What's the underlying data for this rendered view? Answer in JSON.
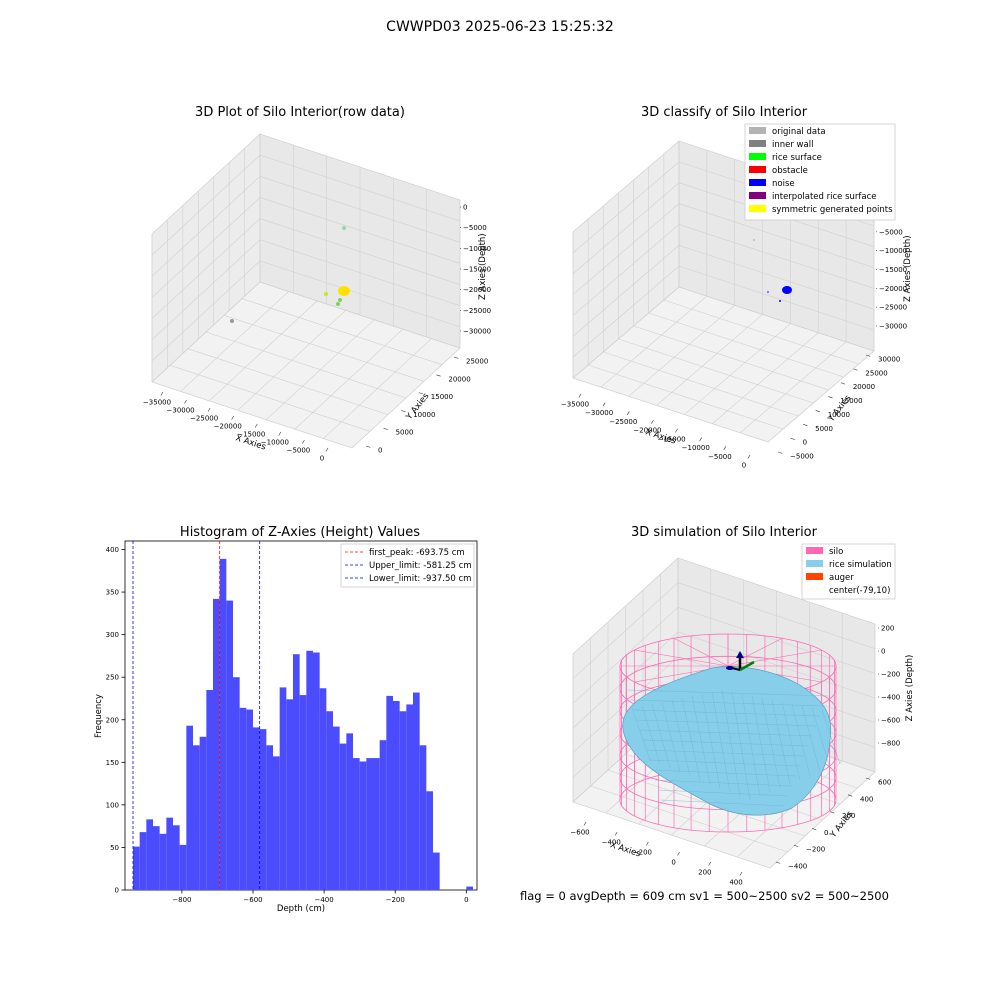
{
  "suptitle": "CWWPD03 2025-06-23 15:25:32",
  "footer": "flag = 0     avgDepth = 609 cm  sv1 = 500~2500  sv2 = 500~2500",
  "colors": {
    "original": "#b3b3b3",
    "inner_wall": "#808080",
    "rice_surface": "#00ff00",
    "obstacle": "#ff0000",
    "noise": "#0000ff",
    "interp": "#800080",
    "symmetric": "#ffff00",
    "hist_bar": "#4c4cff",
    "silo": "#ff69b4",
    "rice_sim": "#87ceeb",
    "auger": "#ff4500"
  },
  "chart_data": [
    {
      "type": "scatter",
      "title": "3D Plot of Silo Interior(row data)",
      "xlabel": "X Axies",
      "ylabel": "Y Axies",
      "zlabel": "Z Axies (Depth)",
      "x_ticks": [
        "−35000",
        "−30000",
        "−25000",
        "−20000",
        "−15000",
        "−10000",
        "−5000",
        "0"
      ],
      "y_ticks": [
        "0",
        "5000",
        "10000",
        "15000",
        "20000",
        "25000"
      ],
      "z_ticks": [
        "0",
        "−5000",
        "−10000",
        "−15000",
        "−20000",
        "−25000",
        "−30000"
      ]
    },
    {
      "type": "scatter",
      "title": "3D classify of Silo Interior",
      "xlabel": "X Axies",
      "ylabel": "Y Axies",
      "zlabel": "Z Axies (Depth)",
      "x_ticks": [
        "−35000",
        "−30000",
        "−25000",
        "−20000",
        "−15000",
        "−10000",
        "−5000",
        "0"
      ],
      "y_ticks": [
        "−5000",
        "0",
        "5000",
        "10000",
        "15000",
        "20000",
        "25000",
        "30000"
      ],
      "z_ticks": [
        "0",
        "−5000",
        "−10000",
        "−15000",
        "−20000",
        "−25000",
        "−30000"
      ],
      "legend": [
        {
          "label": "original data",
          "color": "#b3b3b3"
        },
        {
          "label": "inner wall",
          "color": "#808080"
        },
        {
          "label": "rice surface",
          "color": "#00ff00"
        },
        {
          "label": "obstacle",
          "color": "#ff0000"
        },
        {
          "label": "noise",
          "color": "#0000ff"
        },
        {
          "label": "interpolated rice surface",
          "color": "#800080"
        },
        {
          "label": "symmetric generated points",
          "color": "#ffff00"
        }
      ]
    },
    {
      "type": "bar",
      "title": "Histogram of Z-Axies (Height) Values",
      "xlabel": "Depth (cm)",
      "ylabel": "Frequency",
      "xlim": [
        -960,
        30
      ],
      "ylim": [
        0,
        410
      ],
      "bin_start": -937.5,
      "bin_width": 18.75,
      "counts": [
        51,
        68,
        83,
        75,
        66,
        85,
        76,
        53,
        193,
        170,
        180,
        235,
        342,
        389,
        340,
        250,
        214,
        212,
        191,
        189,
        170,
        157,
        238,
        224,
        277,
        229,
        281,
        279,
        237,
        210,
        192,
        172,
        184,
        155,
        151,
        155,
        155,
        176,
        228,
        222,
        210,
        218,
        232,
        170,
        116,
        44,
        0,
        0,
        0,
        0,
        4
      ],
      "x_ticks": [
        -800,
        -600,
        -400,
        -200,
        0
      ],
      "y_ticks": [
        0,
        50,
        100,
        150,
        200,
        250,
        300,
        350,
        400
      ],
      "vlines": [
        {
          "value": -693.75,
          "color": "#ff0000",
          "label": "first_peak: -693.75 cm"
        },
        {
          "value": -581.25,
          "color": "#0000ff",
          "label": "Upper_limit: -581.25 cm"
        },
        {
          "value": -937.5,
          "color": "#0000ff",
          "label": "Lower_limit: -937.50 cm"
        }
      ]
    },
    {
      "type": "scatter",
      "title": "3D simulation of Silo Interior",
      "xlabel": "X Axies",
      "ylabel": "Y Axies",
      "zlabel": "Z Axies (Depth)",
      "x_ticks": [
        "−600",
        "−400",
        "−200",
        "0",
        "200",
        "400"
      ],
      "y_ticks": [
        "−400",
        "−200",
        "0",
        "200",
        "400",
        "600"
      ],
      "z_ticks": [
        "200",
        "0",
        "−200",
        "−400",
        "−600",
        "−800"
      ],
      "legend": [
        {
          "label": "silo",
          "color": "#ff69b4"
        },
        {
          "label": "rice simulation",
          "color": "#87ceeb"
        },
        {
          "label": "auger",
          "color": "#ff4500"
        },
        {
          "label": "center(-79,10)",
          "color": ""
        }
      ]
    }
  ]
}
